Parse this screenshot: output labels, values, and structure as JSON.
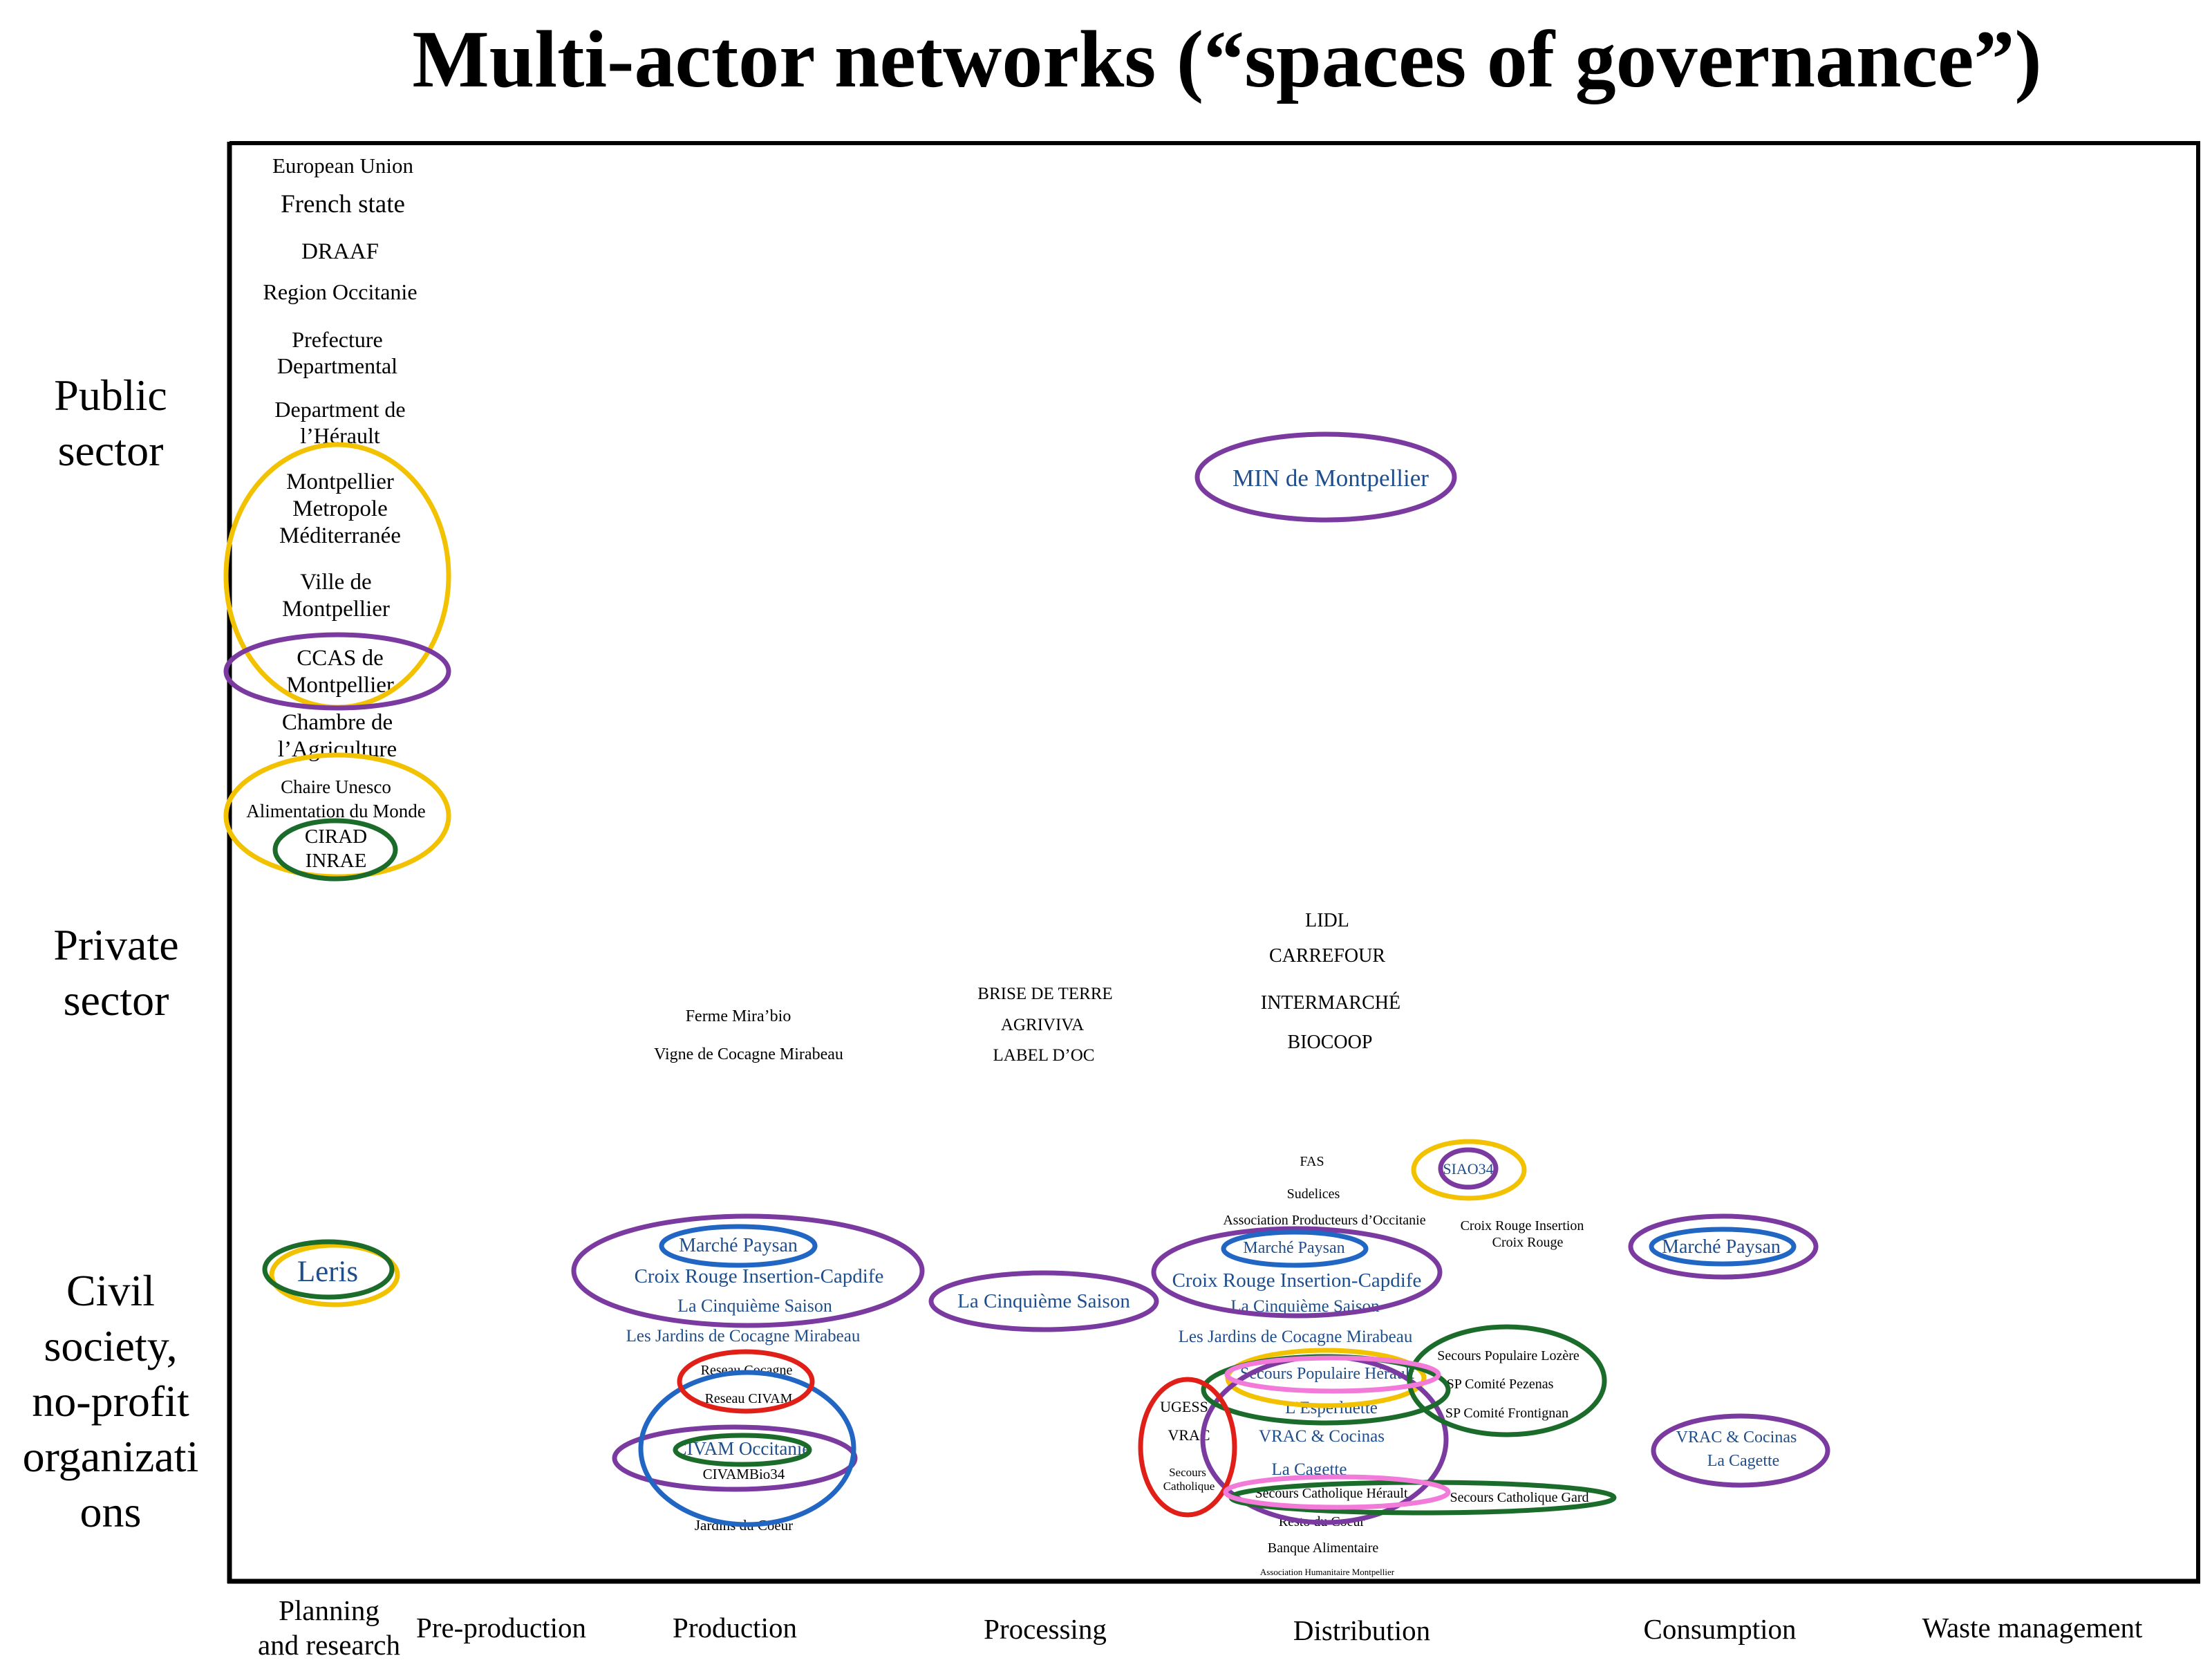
{
  "title": "Multi-actor networks (“spaces of governance”)",
  "colors": {
    "black": "#000000",
    "blue_text": "#1f4e8c",
    "yellow": "#f2c200",
    "purple": "#7b3aa0",
    "green": "#1b6b2a",
    "blue": "#2266c4",
    "red": "#e02018",
    "pink": "#f27ad8"
  },
  "row_labels": {
    "public": [
      "Public",
      "sector"
    ],
    "private": [
      "Private",
      "sector"
    ],
    "civil": [
      "Civil",
      "society,",
      "no-profit",
      "organizati",
      "ons"
    ]
  },
  "column_labels": {
    "planning": [
      "Planning",
      "and research"
    ],
    "preproduction": "Pre-production",
    "production": "Production",
    "processing": "Processing",
    "distribution": "Distribution",
    "consumption": "Consumption",
    "waste": "Waste management"
  },
  "actors": {
    "planning": {
      "eu": "European Union",
      "french_state": "French state",
      "draaf": "DRAAF",
      "region": "Region Occitanie",
      "prefecture": [
        "Prefecture",
        "Departmental"
      ],
      "department": [
        "Department de",
        "l’Hérault"
      ],
      "metropole": [
        "Montpellier",
        "Metropole",
        "Méditerranée"
      ],
      "ville": [
        "Ville de",
        "Montpellier"
      ],
      "ccas": [
        "CCAS de",
        "Montpellier"
      ],
      "chambre": [
        "Chambre de",
        "l’Agriculture"
      ],
      "chaire": [
        "Chaire Unesco",
        "Alimentation du Monde"
      ],
      "cirad": [
        "CIRAD",
        "INRAE"
      ],
      "leris": "Leris"
    },
    "distribution_public": {
      "min": "MIN de Montpellier"
    },
    "private": {
      "ferme": "Ferme Mira’bio",
      "vigne": "Vigne de Cocagne Mirabeau",
      "brise": "BRISE DE TERRE",
      "agriviva": "AGRIVIVA",
      "label_oc": "LABEL D’OC",
      "lidl": "LIDL",
      "carrefour": "CARREFOUR",
      "intermarche": "INTERMARCHÉ",
      "biocoop": "BIOCOOP"
    },
    "production": {
      "marche_paysan": "Marché Paysan",
      "croix_rouge": "Croix Rouge Insertion-Capdife",
      "cinquieme": "La Cinquième Saison",
      "jardins_cocagne": "Les Jardins de Cocagne Mirabeau",
      "reseau_cocagne": "Reseau Cocagne",
      "reseau_civam": "Reseau CIVAM",
      "civam_occitanie": "CIVAM Occitanie",
      "civambio34": "CIVAMBio34",
      "jardins_coeur": "Jardins du Coeur"
    },
    "processing": {
      "cinquieme": "La Cinquième Saison"
    },
    "distribution": {
      "fas": "FAS",
      "sudelices": "Sudelices",
      "assoc_producteurs": "Association Producteurs d’Occitanie",
      "siao34": "SIAO34",
      "croix_rouge_insertion": [
        "Croix Rouge Insertion",
        "Croix Rouge"
      ],
      "marche_paysan": "Marché Paysan",
      "croix_rouge": "Croix Rouge Insertion-Capdife",
      "cinquieme": "La Cinquième Saison",
      "jardins_cocagne": "Les Jardins de Cocagne Mirabeau",
      "secours_lozere": "Secours Populaire Lozère",
      "secours_herault": "Secours Populaire Hérault",
      "sp_pezenas": "SP Comité Pezenas",
      "esperluette": "L’Esperluette",
      "sp_frontignan": "SP Comité Frontignan",
      "ugess": "UGESS",
      "vrac_short": "VRAC",
      "vrac_cocinas": "VRAC & Cocinas",
      "secours_catholique": [
        "Secours",
        "Catholique"
      ],
      "la_cagette": "La Cagette",
      "sc_herault": "Secours Catholique Hérault",
      "sc_gard": "Secours Catholique Gard",
      "resto_coeur": "Resto du Coeur",
      "banque": "Banque Alimentaire",
      "assoc_humanitaire": "Association Humanitaire Montpellier"
    },
    "consumption": {
      "marche_paysan": "Marché Paysan",
      "vrac_cocinas": "VRAC & Cocinas",
      "la_cagette": "La Cagette"
    }
  }
}
